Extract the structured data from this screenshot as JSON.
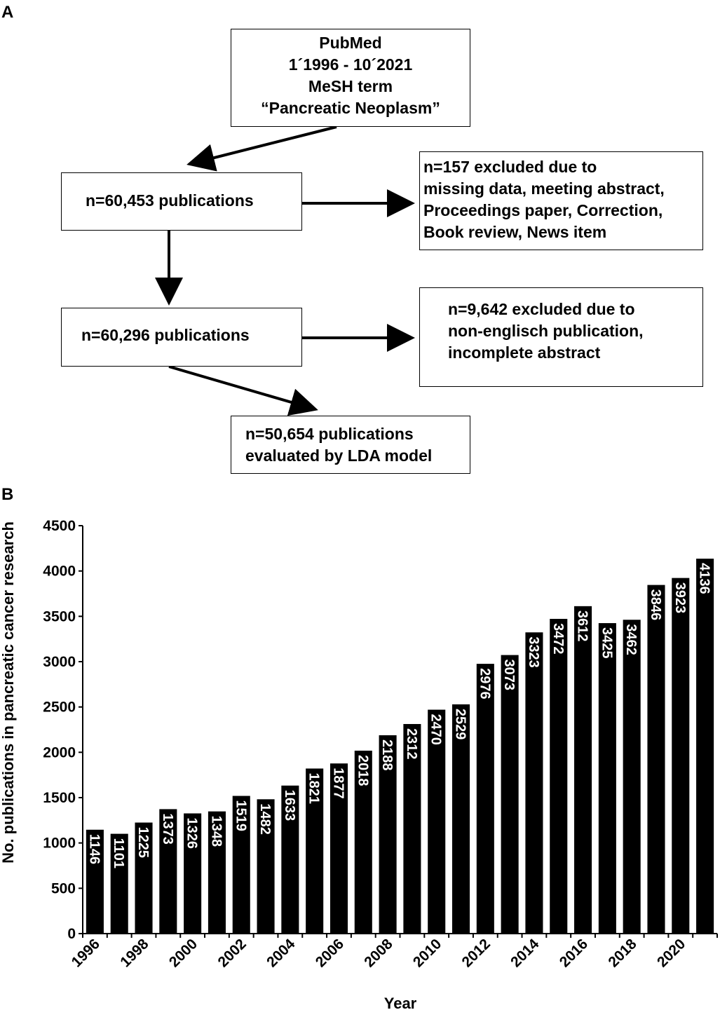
{
  "panels": {
    "a_label": "A",
    "b_label": "B"
  },
  "flowchart": {
    "source_box": [
      "PubMed",
      "1´1996 - 10´2021",
      "MeSH term",
      "“Pancreatic Neoplasm”"
    ],
    "step1": "n=60,453 publications",
    "exclusion1": [
      "n=157 excluded due to",
      "missing data, meeting abstract,",
      "Proceedings paper, Correction,",
      "Book review, News item"
    ],
    "step2": "n=60,296 publications",
    "exclusion2": [
      "n=9,642 excluded due to",
      "non-englisch publication,",
      "incomplete abstract"
    ],
    "final_box": [
      "n=50,654 publications",
      "evaluated by LDA model"
    ]
  },
  "chart_data": {
    "type": "bar",
    "title": "",
    "xlabel": "Year",
    "ylabel": "No. publications in pancreatic cancer research",
    "categories": [
      "1996",
      "1997",
      "1998",
      "1999",
      "2000",
      "2001",
      "2002",
      "2003",
      "2004",
      "2005",
      "2006",
      "2007",
      "2008",
      "2009",
      "2010",
      "2011",
      "2012",
      "2013",
      "2014",
      "2015",
      "2016",
      "2017",
      "2018",
      "2019",
      "2020",
      "2021"
    ],
    "values": [
      1146,
      1101,
      1225,
      1373,
      1326,
      1348,
      1519,
      1482,
      1633,
      1821,
      1877,
      2018,
      2188,
      2312,
      2470,
      2529,
      2976,
      3073,
      3323,
      3472,
      3612,
      3425,
      3462,
      3846,
      3923,
      4136
    ],
    "x_tick_labels": [
      "1996",
      "1998",
      "2000",
      "2002",
      "2004",
      "2006",
      "2008",
      "2010",
      "2012",
      "2014",
      "2016",
      "2018",
      "2020"
    ],
    "y_ticks": [
      0,
      500,
      1000,
      1500,
      2000,
      2500,
      3000,
      3500,
      4000,
      4500
    ],
    "ylim": [
      0,
      4500
    ],
    "grid": false,
    "legend": "none",
    "bar_color": "#000000",
    "label_color": "#ffffff"
  }
}
